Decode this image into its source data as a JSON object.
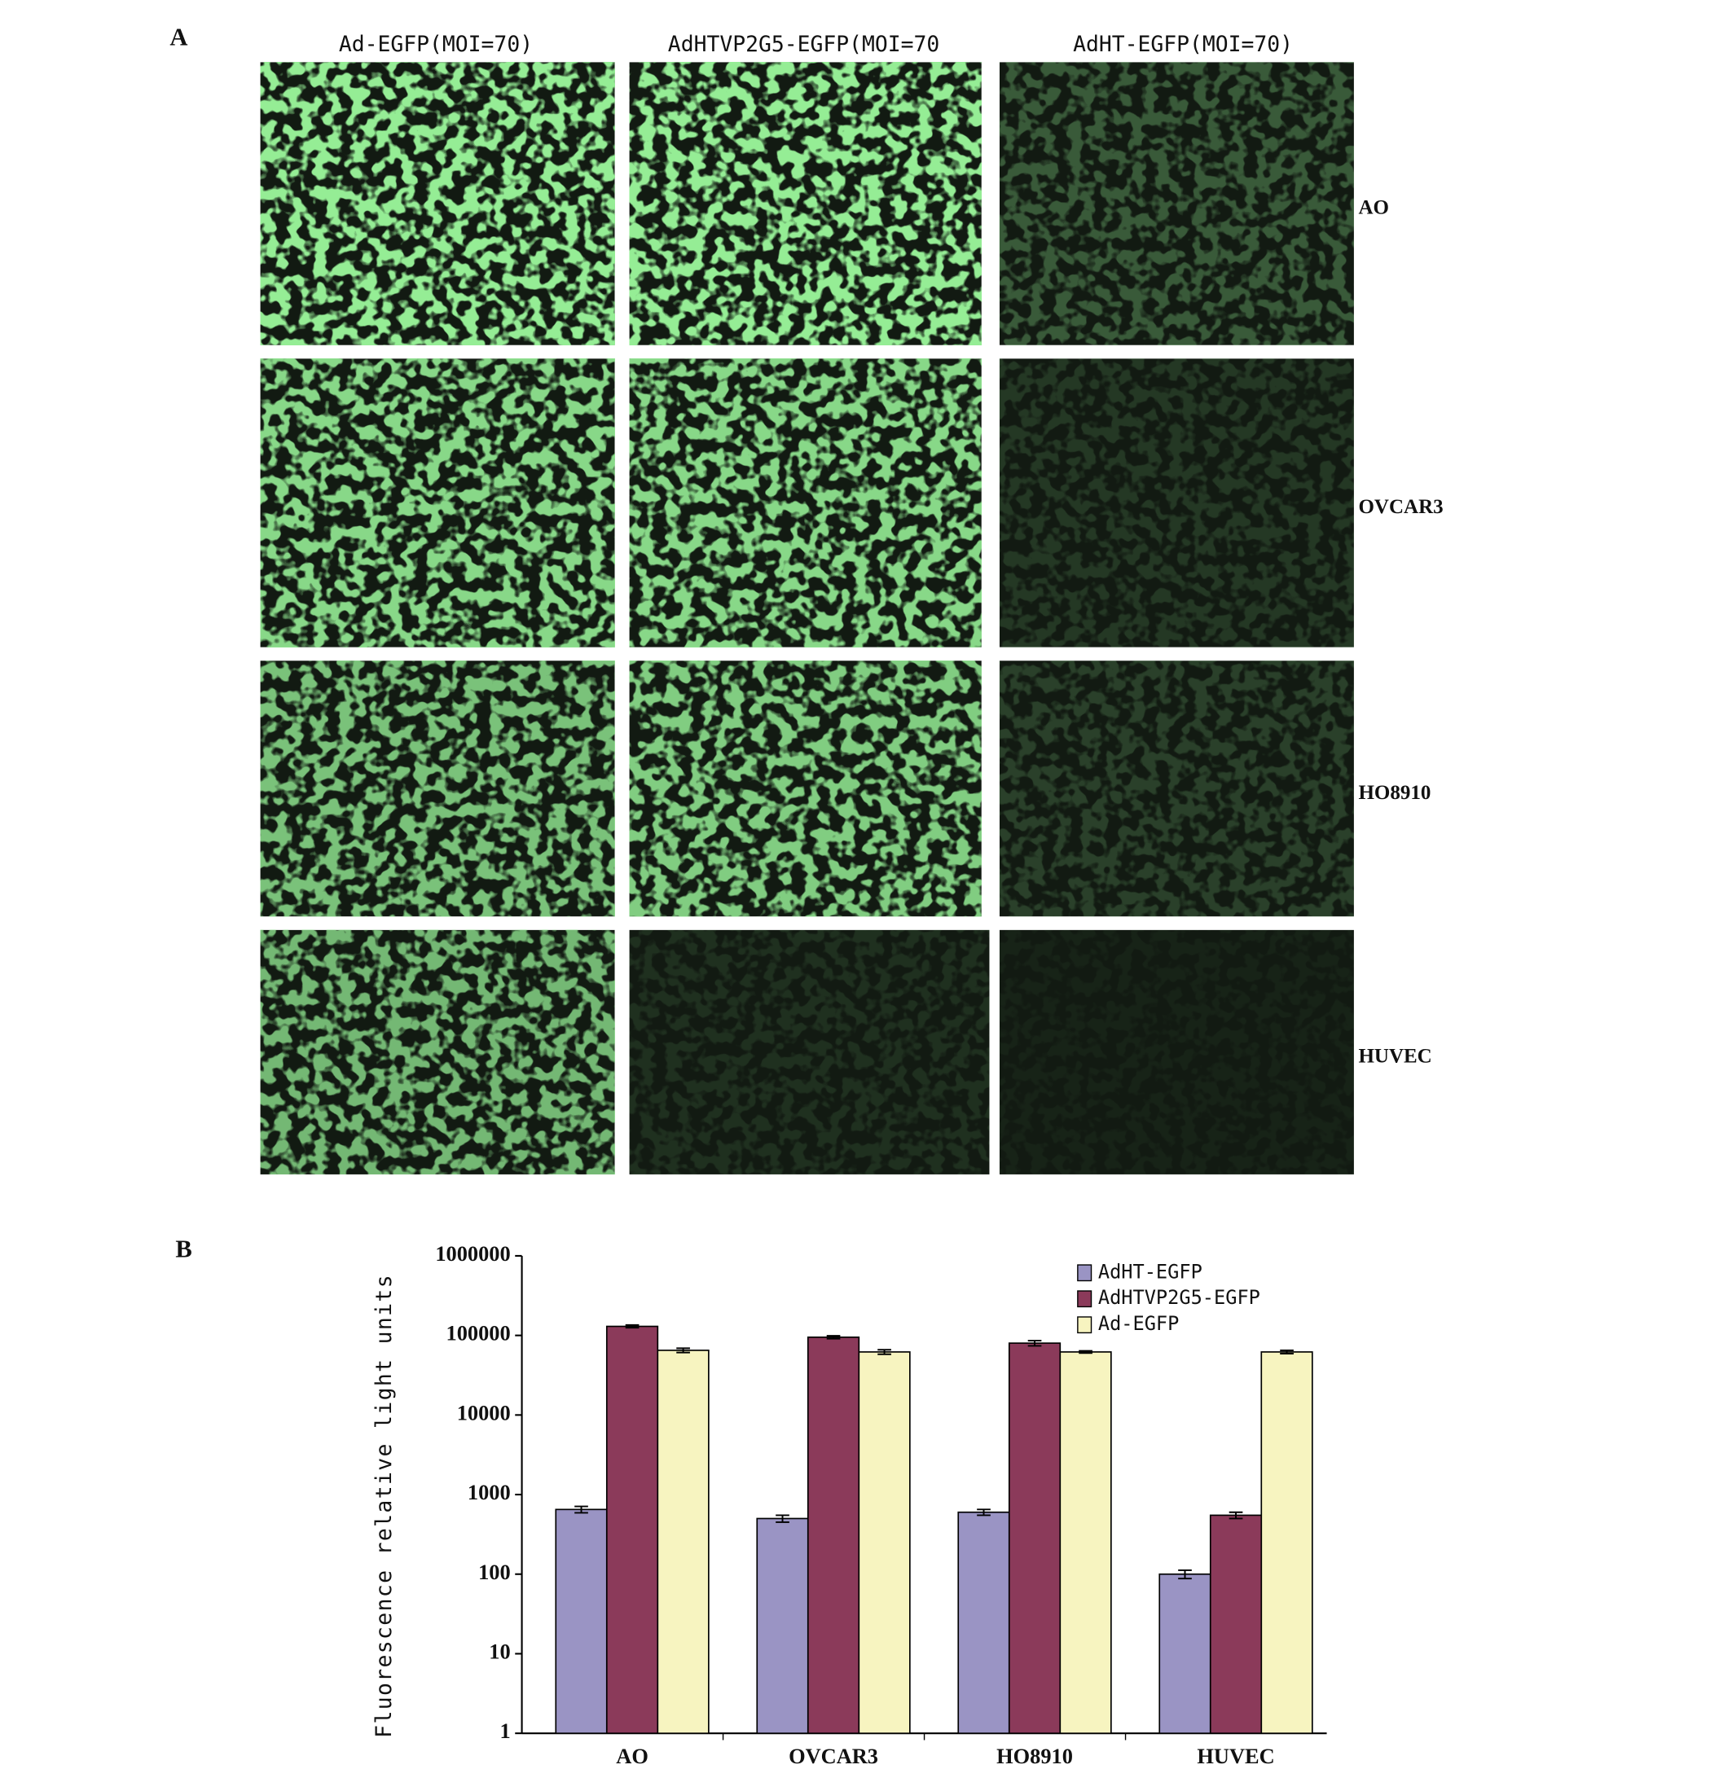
{
  "panel_a": {
    "label": "A",
    "columns": [
      "Ad-EGFP(MOI=70)",
      "AdHTVP2G5-EGFP(MOI=70",
      "AdHT-EGFP(MOI=70)"
    ],
    "rows": [
      "AO",
      "OVCAR3",
      "HO8910",
      "HUVEC"
    ]
  },
  "panel_b": {
    "label": "B"
  },
  "chart_data": {
    "type": "bar",
    "y_label": "Fluorescence relative light units",
    "categories": [
      "AO",
      "OVCAR3",
      "HO8910",
      "HUVEC"
    ],
    "series": [
      {
        "name": "AdHT-EGFP",
        "color": "#9a94c4",
        "values": [
          650,
          500,
          600,
          100
        ],
        "errors": [
          60,
          50,
          50,
          12
        ]
      },
      {
        "name": "AdHTVP2G5-EGFP",
        "color": "#8b3a5a",
        "values": [
          130000,
          95000,
          80000,
          550
        ],
        "errors": [
          5000,
          4000,
          6000,
          50
        ]
      },
      {
        "name": "Ad-EGFP",
        "color": "#f7f4c0",
        "values": [
          65000,
          62000,
          62000,
          62000
        ],
        "errors": [
          4000,
          4000,
          2000,
          3000
        ]
      }
    ],
    "log_scale": true,
    "ylim": [
      1,
      1000000
    ],
    "yticks": [
      1,
      10,
      100,
      1000,
      10000,
      100000,
      1000000
    ],
    "legend": "upper right"
  }
}
